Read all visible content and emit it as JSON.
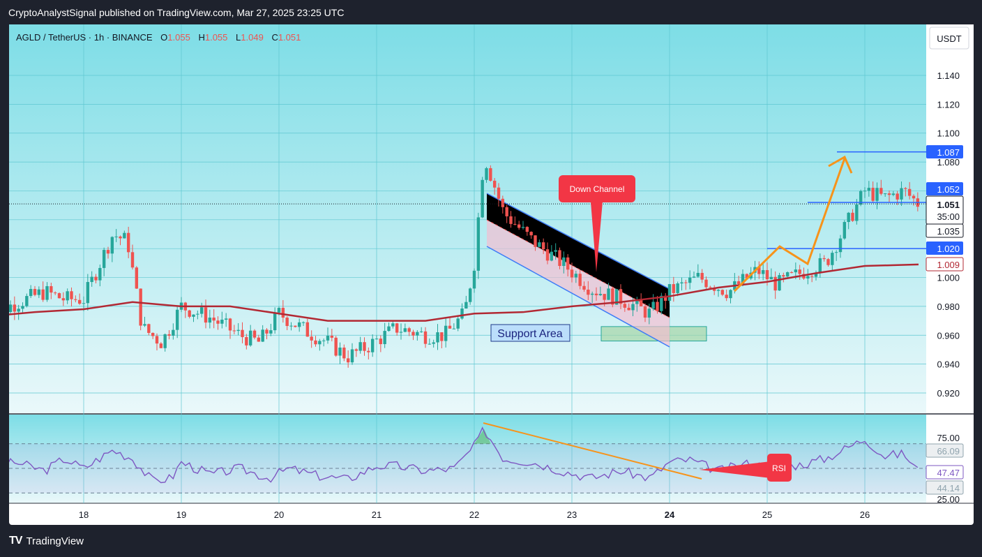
{
  "header": {
    "published_text": "CryptoAnalystSignal published on TradingView.com, Mar 27, 2025 23:25 UTC"
  },
  "legend": {
    "symbol": "AGLD / TetherUS · 1h · BINANCE",
    "o_label": "O",
    "o_value": "1.055",
    "h_label": "H",
    "h_value": "1.055",
    "l_label": "L",
    "l_value": "1.049",
    "c_label": "C",
    "c_value": "1.051"
  },
  "currency_button": "USDT",
  "annotations": {
    "down_channel": "Down Channel",
    "support_area": "Support Area",
    "rsi": "RSI"
  },
  "price_tags": {
    "level_1087": "1.087",
    "level_1052": "1.052",
    "current_price": "1.051",
    "countdown": "35:00",
    "level_1035": "1.035",
    "level_1020": "1.020",
    "ma_value": "1.009"
  },
  "rsi_tags": {
    "upper": "66.09",
    "value": "47.47",
    "lower": "44.14"
  },
  "footer": {
    "brand": "TradingView"
  },
  "colors": {
    "background_top": "#7ddde6",
    "background_bottom": "#eaf8fa",
    "bull": "#26a69a",
    "bear": "#ef5350",
    "ma": "#b22833",
    "channel": "#3d7bf7",
    "arrow": "#f7931a",
    "rsi_line": "#7e57c2",
    "callout": "#f23645"
  },
  "chart_data": [
    {
      "type": "candlestick",
      "title": "AGLD / TetherUS · 1h · BINANCE",
      "x_ticks": [
        "18",
        "19",
        "20",
        "21",
        "22",
        "23",
        "24",
        "25",
        "26"
      ],
      "y_ticks": [
        "1.140",
        "1.120",
        "1.100",
        "1.080",
        "1.000",
        "0.980",
        "0.960",
        "0.940",
        "0.920"
      ],
      "ylim": [
        0.91,
        1.15
      ],
      "current_price": 1.051,
      "ohlc_last": {
        "open": 1.055,
        "high": 1.055,
        "low": 1.049,
        "close": 1.051
      },
      "horizontal_levels": [
        1.087,
        1.052,
        1.02
      ],
      "moving_average_last": 1.009,
      "support_area": [
        0.956,
        0.966
      ],
      "close_trace": [
        [
          17.0,
          0.973
        ],
        [
          17.3,
          0.982
        ],
        [
          17.6,
          0.99
        ],
        [
          17.8,
          0.985
        ],
        [
          18.0,
          0.985
        ],
        [
          18.3,
          1.03
        ],
        [
          18.45,
          1.025
        ],
        [
          18.6,
          0.965
        ],
        [
          18.8,
          0.955
        ],
        [
          19.0,
          0.98
        ],
        [
          19.3,
          0.972
        ],
        [
          19.6,
          0.96
        ],
        [
          19.8,
          0.955
        ],
        [
          20.0,
          0.975
        ],
        [
          20.3,
          0.962
        ],
        [
          20.5,
          0.955
        ],
        [
          20.7,
          0.945
        ],
        [
          20.9,
          0.952
        ],
        [
          21.2,
          0.965
        ],
        [
          21.5,
          0.96
        ],
        [
          21.7,
          0.96
        ],
        [
          21.9,
          0.975
        ],
        [
          22.0,
          1.01
        ],
        [
          22.1,
          1.085
        ],
        [
          22.3,
          1.045
        ],
        [
          22.6,
          1.025
        ],
        [
          22.9,
          1.01
        ],
        [
          23.2,
          0.992
        ],
        [
          23.5,
          0.985
        ],
        [
          23.8,
          0.975
        ],
        [
          24.0,
          0.99
        ],
        [
          24.3,
          1.0
        ],
        [
          24.6,
          0.99
        ],
        [
          24.9,
          1.005
        ],
        [
          25.1,
          0.995
        ],
        [
          25.4,
          1.005
        ],
        [
          25.6,
          1.01
        ],
        [
          25.8,
          1.035
        ],
        [
          26.0,
          1.06
        ],
        [
          26.2,
          1.055
        ],
        [
          26.4,
          1.06
        ],
        [
          26.55,
          1.051
        ]
      ],
      "moving_average_trace": [
        [
          17.0,
          0.973
        ],
        [
          17.5,
          0.976
        ],
        [
          18.0,
          0.978
        ],
        [
          18.5,
          0.983
        ],
        [
          19.0,
          0.98
        ],
        [
          19.5,
          0.98
        ],
        [
          20.0,
          0.975
        ],
        [
          20.5,
          0.97
        ],
        [
          21.0,
          0.97
        ],
        [
          21.5,
          0.97
        ],
        [
          22.0,
          0.975
        ],
        [
          22.5,
          0.976
        ],
        [
          23.0,
          0.98
        ],
        [
          23.5,
          0.983
        ],
        [
          24.0,
          0.987
        ],
        [
          24.5,
          0.993
        ],
        [
          25.0,
          0.997
        ],
        [
          25.5,
          1.003
        ],
        [
          26.0,
          1.008
        ],
        [
          26.55,
          1.009
        ]
      ]
    },
    {
      "type": "line",
      "title": "RSI",
      "y_ticks": [
        "75.00",
        "25.00"
      ],
      "ylim": [
        20,
        85
      ],
      "bands": [
        70,
        50,
        30
      ],
      "last_value": 47.47,
      "values_trace": [
        [
          17.0,
          50
        ],
        [
          17.3,
          55
        ],
        [
          17.6,
          48
        ],
        [
          17.8,
          58
        ],
        [
          18.0,
          50
        ],
        [
          18.3,
          65
        ],
        [
          18.5,
          58
        ],
        [
          18.7,
          40
        ],
        [
          18.9,
          42
        ],
        [
          19.0,
          55
        ],
        [
          19.3,
          45
        ],
        [
          19.6,
          50
        ],
        [
          19.9,
          42
        ],
        [
          20.1,
          50
        ],
        [
          20.4,
          44
        ],
        [
          20.7,
          41
        ],
        [
          21.0,
          52
        ],
        [
          21.2,
          52
        ],
        [
          21.5,
          48
        ],
        [
          21.8,
          50
        ],
        [
          22.0,
          68
        ],
        [
          22.1,
          82
        ],
        [
          22.3,
          58
        ],
        [
          22.6,
          55
        ],
        [
          22.9,
          48
        ],
        [
          23.2,
          42
        ],
        [
          23.5,
          48
        ],
        [
          23.8,
          42
        ],
        [
          24.0,
          55
        ],
        [
          24.2,
          57
        ],
        [
          24.5,
          48
        ],
        [
          24.8,
          54
        ],
        [
          25.1,
          50
        ],
        [
          25.4,
          54
        ],
        [
          25.6,
          58
        ],
        [
          25.8,
          66
        ],
        [
          26.0,
          74
        ],
        [
          26.2,
          60
        ],
        [
          26.4,
          62
        ],
        [
          26.55,
          47.47
        ]
      ]
    }
  ]
}
